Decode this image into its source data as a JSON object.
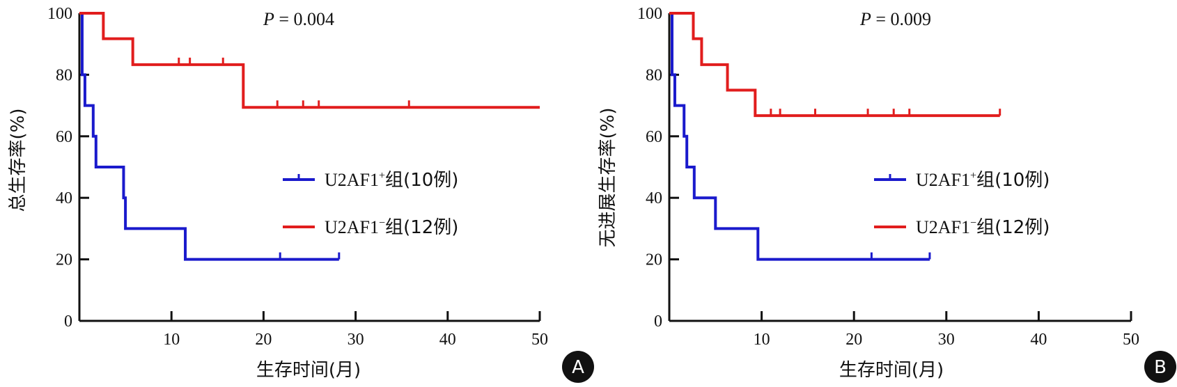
{
  "chart_data": [
    {
      "type": "line",
      "panel": "A",
      "p_value": {
        "italic": "P",
        "text": " = 0.004"
      },
      "ylabel": "总生存率(%)",
      "xlabel": "生存时间(月)",
      "ylim": [
        0,
        100
      ],
      "xlim": [
        0,
        50
      ],
      "yticks": [
        "0",
        "20",
        "40",
        "60",
        "80",
        "100"
      ],
      "yticks_values": [
        0,
        20,
        40,
        60,
        80,
        100
      ],
      "xticks": [
        "10",
        "20",
        "30",
        "40",
        "50"
      ],
      "xticks_values": [
        10,
        20,
        30,
        40,
        50
      ],
      "legend_position": "center-right",
      "series": [
        {
          "name": "U2AF1⁺组(10例)",
          "legend_prefix": "U2AF1",
          "legend_sup": "+",
          "legend_cn": "组",
          "legend_count": "(10例)",
          "color": "#1a1acc",
          "steps": [
            [
              0,
              100
            ],
            [
              0.3,
              80
            ],
            [
              0.6,
              70
            ],
            [
              1.5,
              60
            ],
            [
              1.8,
              50
            ],
            [
              4.8,
              40
            ],
            [
              5.0,
              30
            ],
            [
              11.5,
              20
            ]
          ],
          "end": 28.2,
          "censor": [
            21.8,
            28.2
          ]
        },
        {
          "name": "U2AF1⁻组(12例)",
          "legend_prefix": "U2AF1",
          "legend_sup": "−",
          "legend_cn": "组",
          "legend_count": "(12例)",
          "color": "#e11d1d",
          "steps": [
            [
              0,
              100
            ],
            [
              2.6,
              91.7
            ],
            [
              5.8,
              83.3
            ],
            [
              17.8,
              69.4
            ]
          ],
          "end": 50,
          "censor": [
            10.8,
            12.0,
            15.6,
            21.5,
            24.3,
            26.0,
            35.8
          ]
        }
      ]
    },
    {
      "type": "line",
      "panel": "B",
      "p_value": {
        "italic": "P",
        "text": " = 0.009"
      },
      "ylabel": "无进展生存率(%)",
      "xlabel": "生存时间(月)",
      "ylim": [
        0,
        100
      ],
      "xlim": [
        0,
        50
      ],
      "yticks": [
        "0",
        "20",
        "40",
        "60",
        "80",
        "100"
      ],
      "yticks_values": [
        0,
        20,
        40,
        60,
        80,
        100
      ],
      "xticks": [
        "10",
        "20",
        "30",
        "40",
        "50"
      ],
      "xticks_values": [
        10,
        20,
        30,
        40,
        50
      ],
      "legend_position": "center-right",
      "series": [
        {
          "name": "U2AF1⁺组(10例)",
          "legend_prefix": "U2AF1",
          "legend_sup": "+",
          "legend_cn": "组",
          "legend_count": "(10例)",
          "color": "#1a1acc",
          "steps": [
            [
              0,
              100
            ],
            [
              0.3,
              80
            ],
            [
              0.6,
              70
            ],
            [
              1.6,
              60
            ],
            [
              1.9,
              50
            ],
            [
              2.7,
              40
            ],
            [
              5.0,
              30
            ],
            [
              9.6,
              20
            ]
          ],
          "end": 28.2,
          "censor": [
            21.9,
            28.2
          ]
        },
        {
          "name": "U2AF1⁻组(12例)",
          "legend_prefix": "U2AF1",
          "legend_sup": "−",
          "legend_cn": "组",
          "legend_count": "(12例)",
          "color": "#e11d1d",
          "steps": [
            [
              0,
              100
            ],
            [
              2.6,
              91.7
            ],
            [
              3.5,
              83.3
            ],
            [
              6.3,
              75
            ],
            [
              9.3,
              66.7
            ]
          ],
          "end": 35.8,
          "censor": [
            11.0,
            12.0,
            15.8,
            21.5,
            24.3,
            26.0,
            35.8
          ]
        }
      ]
    }
  ]
}
